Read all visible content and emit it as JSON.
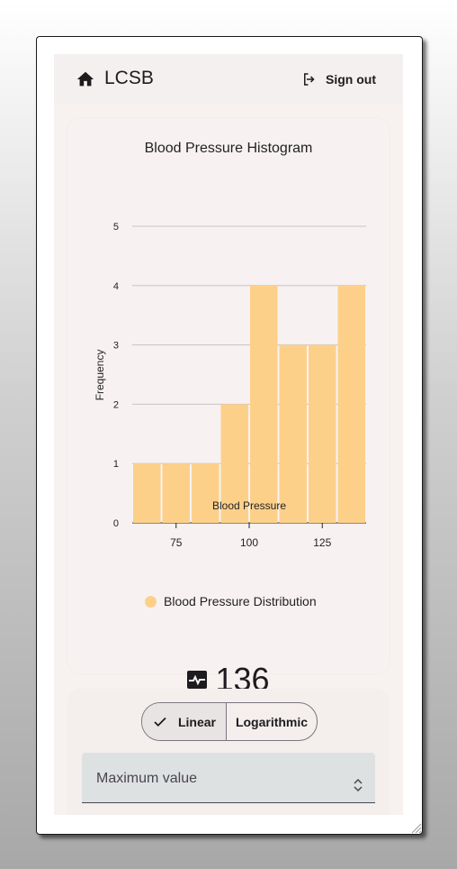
{
  "header": {
    "title": "LCSB",
    "signout_label": "Sign out"
  },
  "icons": {
    "home": "home-icon",
    "signout": "logout-icon",
    "metric": "heart-monitor-icon",
    "check": "check-icon"
  },
  "colors": {
    "bar": "#fdd08a",
    "background": "#f7f2f0"
  },
  "chart_data": {
    "type": "bar",
    "title": "Blood Pressure Histogram",
    "xlabel": "Blood Pressure",
    "ylabel": "Frequency",
    "bins": [
      [
        60,
        70
      ],
      [
        70,
        80
      ],
      [
        80,
        90
      ],
      [
        90,
        100
      ],
      [
        100,
        110
      ],
      [
        110,
        120
      ],
      [
        120,
        130
      ],
      [
        130,
        140
      ]
    ],
    "values": [
      1,
      1,
      1,
      2,
      4,
      3,
      3,
      4
    ],
    "xlim": [
      60,
      140
    ],
    "ylim": [
      0,
      5
    ],
    "x_ticks": [
      75,
      100,
      125
    ],
    "y_ticks": [
      0,
      1,
      2,
      3,
      4,
      5
    ],
    "grid": true,
    "legend": {
      "position": "bottom",
      "entries": [
        "Blood Pressure Distribution"
      ]
    }
  },
  "metric": {
    "value": "136"
  },
  "scale_toggle": {
    "options": [
      "Linear",
      "Logarithmic"
    ],
    "selected": "Linear"
  },
  "max_field": {
    "label": "Maximum value",
    "value": ""
  }
}
